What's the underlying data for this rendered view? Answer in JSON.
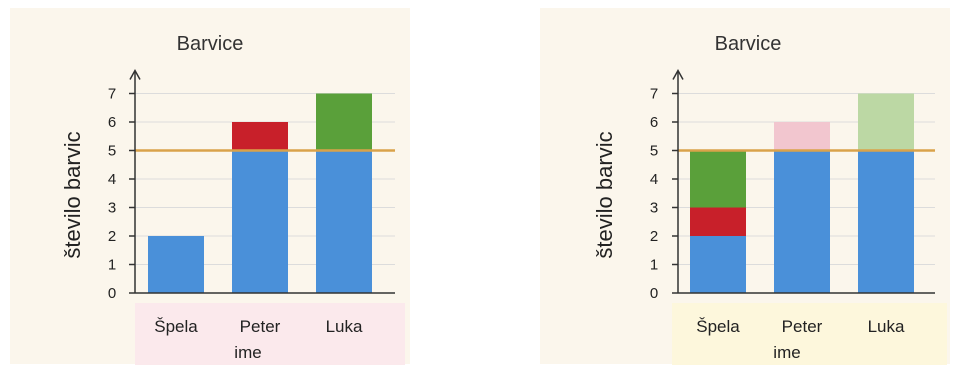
{
  "chart_data": [
    {
      "type": "bar",
      "title": "Barvice",
      "xlabel": "ime",
      "ylabel": "število barvic",
      "categories": [
        "Špela",
        "Peter",
        "Luka"
      ],
      "ylim": [
        0,
        7
      ],
      "yticks": [
        0,
        1,
        2,
        3,
        4,
        5,
        6,
        7
      ],
      "grid": true,
      "reference_line": {
        "value": 5,
        "color": "#d9a24a"
      },
      "stacked": true,
      "series": [
        {
          "values": [
            2,
            5,
            5
          ],
          "color": "#4a90d9"
        },
        {
          "values": [
            0,
            1,
            0
          ],
          "color": "#c8202a"
        },
        {
          "values": [
            0,
            0,
            2
          ],
          "color": "#5aa03a"
        }
      ],
      "background": "#fbf6ec",
      "label_band_color": "#fbe9ec"
    },
    {
      "type": "bar",
      "title": "Barvice",
      "xlabel": "ime",
      "ylabel": "število barvic",
      "categories": [
        "Špela",
        "Peter",
        "Luka"
      ],
      "ylim": [
        0,
        7
      ],
      "yticks": [
        0,
        1,
        2,
        3,
        4,
        5,
        6,
        7
      ],
      "grid": true,
      "reference_line": {
        "value": 5,
        "color": "#d9a24a"
      },
      "stacked": true,
      "series": [
        {
          "values": [
            2,
            5,
            5
          ],
          "color": "#4a90d9"
        },
        {
          "values": [
            1,
            0,
            0
          ],
          "color": "#c8202a"
        },
        {
          "values": [
            2,
            0,
            0
          ],
          "color": "#5aa03a"
        },
        {
          "values": [
            0,
            1,
            0
          ],
          "color": "#f2c6cf"
        },
        {
          "values": [
            0,
            0,
            2
          ],
          "color": "#bcd8a4"
        }
      ],
      "background": "#fbf6ec",
      "label_band_color": "#fdf7dc"
    }
  ]
}
